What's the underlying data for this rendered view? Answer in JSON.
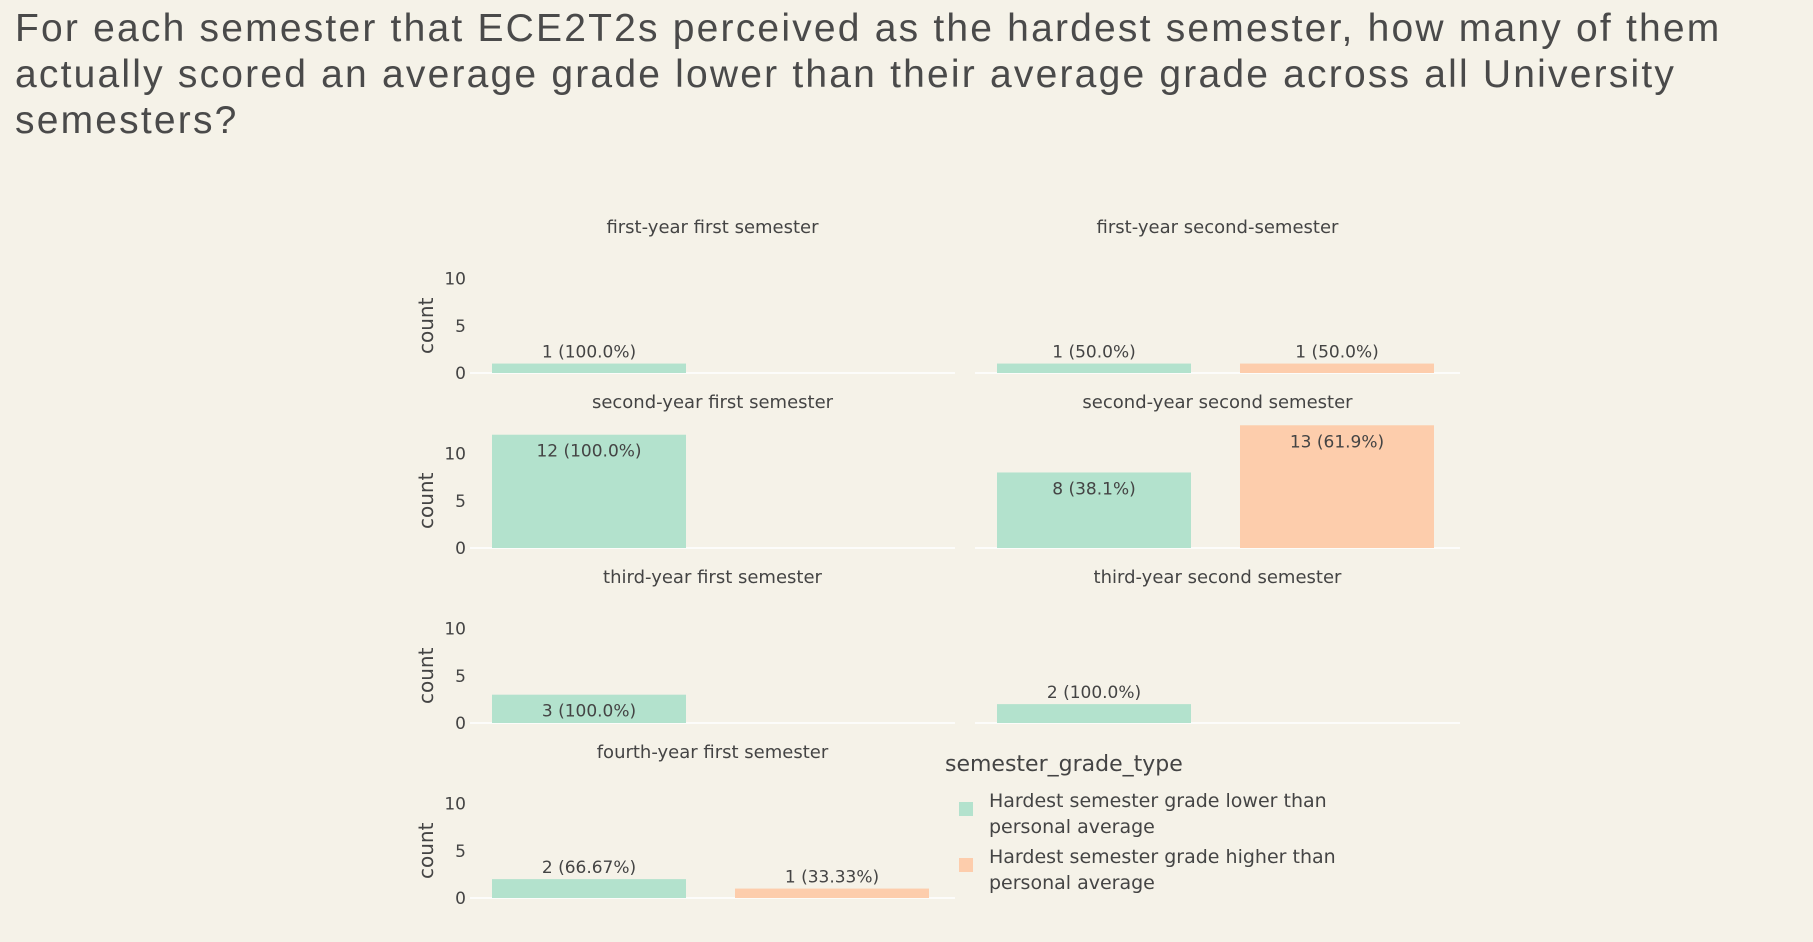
{
  "title": "For each semester that ECE2T2s perceived as the hardest semester, how many of them actually scored an average grade lower than their average grade across all University semesters?",
  "chart_data": {
    "type": "bar",
    "facet_titles": [
      "first-year first semester",
      "first-year second-semester",
      "second-year first semester",
      "second-year second semester",
      "third-year first semester",
      "third-year second semester",
      "fourth-year first semester"
    ],
    "series_names": [
      "Hardest semester grade lower than personal average",
      "Hardest semester grade higher than personal average"
    ],
    "colors": [
      "#b3e2cd",
      "#fdcdac"
    ],
    "ylabel": "count",
    "ylim": [
      0,
      13
    ],
    "yticks": [
      "0",
      "5",
      "10"
    ],
    "grid": false,
    "legend_position": "bottom-right",
    "facets": [
      {
        "title": "first-year first semester",
        "bars": [
          {
            "series": 0,
            "value": 1,
            "label": "1 (100.0%)",
            "label_position": "outside"
          }
        ]
      },
      {
        "title": "first-year second-semester",
        "bars": [
          {
            "series": 0,
            "value": 1,
            "label": "1 (50.0%)",
            "label_position": "outside"
          },
          {
            "series": 1,
            "value": 1,
            "label": "1 (50.0%)",
            "label_position": "outside"
          }
        ]
      },
      {
        "title": "second-year first semester",
        "bars": [
          {
            "series": 0,
            "value": 12,
            "label": "12 (100.0%)",
            "label_position": "inside"
          }
        ]
      },
      {
        "title": "second-year second semester",
        "bars": [
          {
            "series": 0,
            "value": 8,
            "label": "8 (38.1%)",
            "label_position": "inside"
          },
          {
            "series": 1,
            "value": 13,
            "label": "13 (61.9%)",
            "label_position": "inside"
          }
        ]
      },
      {
        "title": "third-year first semester",
        "bars": [
          {
            "series": 0,
            "value": 3,
            "label": "3 (100.0%)",
            "label_position": "inside"
          }
        ]
      },
      {
        "title": "third-year second semester",
        "bars": [
          {
            "series": 0,
            "value": 2,
            "label": "2 (100.0%)",
            "label_position": "outside"
          }
        ]
      },
      {
        "title": "fourth-year first semester",
        "bars": [
          {
            "series": 0,
            "value": 2,
            "label": "2 (66.67%)",
            "label_position": "outside"
          },
          {
            "series": 1,
            "value": 1,
            "label": "1 (33.33%)",
            "label_position": "outside"
          }
        ]
      }
    ]
  },
  "legend": {
    "title": "semester_grade_type",
    "items": [
      {
        "label": "Hardest semester grade lower than personal average",
        "color": "#b3e2cd"
      },
      {
        "label": "Hardest semester grade higher than personal average",
        "color": "#fdcdac"
      }
    ]
  }
}
